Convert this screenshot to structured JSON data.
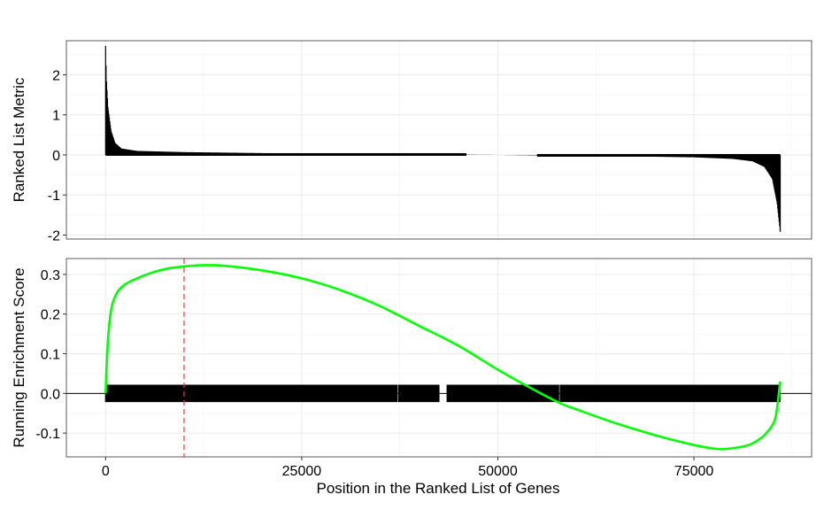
{
  "chart_data": [
    {
      "type": "bar",
      "title": "",
      "xlabel": "",
      "ylabel": "Ranked List Metric",
      "xlim": [
        -5000,
        90000
      ],
      "ylim": [
        -2.1,
        2.85
      ],
      "x_ticks": [
        0,
        25000,
        50000,
        75000
      ],
      "y_ticks": [
        2,
        1,
        0,
        -1,
        -2
      ],
      "y_tick_labels": [
        "2",
        "1",
        "0",
        "-1",
        "-2"
      ],
      "grid": true,
      "n_genes": 86000,
      "profile": [
        {
          "x": 0,
          "y": 2.72
        },
        {
          "x": 100,
          "y": 1.9
        },
        {
          "x": 300,
          "y": 1.2
        },
        {
          "x": 700,
          "y": 0.6
        },
        {
          "x": 1200,
          "y": 0.3
        },
        {
          "x": 2000,
          "y": 0.16
        },
        {
          "x": 4000,
          "y": 0.1
        },
        {
          "x": 10000,
          "y": 0.07
        },
        {
          "x": 20000,
          "y": 0.045
        },
        {
          "x": 30000,
          "y": 0.03
        },
        {
          "x": 40000,
          "y": 0.015
        },
        {
          "x": 46000,
          "y": 0.005
        },
        {
          "x": 50000,
          "y": 0.0
        },
        {
          "x": 55000,
          "y": -0.01
        },
        {
          "x": 65000,
          "y": -0.03
        },
        {
          "x": 75000,
          "y": -0.06
        },
        {
          "x": 80000,
          "y": -0.1
        },
        {
          "x": 82500,
          "y": -0.16
        },
        {
          "x": 84000,
          "y": -0.3
        },
        {
          "x": 85000,
          "y": -0.6
        },
        {
          "x": 85600,
          "y": -1.2
        },
        {
          "x": 86000,
          "y": -1.92
        }
      ],
      "colors": {
        "bars": "#000000",
        "grid": "#ebebeb",
        "border": "#333333"
      }
    },
    {
      "type": "line",
      "title": "",
      "xlabel": "Position in the Ranked List of Genes",
      "ylabel": "Running Enrichment Score",
      "xlim": [
        -5000,
        90000
      ],
      "ylim": [
        -0.16,
        0.34
      ],
      "x_ticks": [
        0,
        25000,
        50000,
        75000
      ],
      "x_tick_labels": [
        "0",
        "25000",
        "50000",
        "75000"
      ],
      "y_ticks": [
        0.3,
        0.2,
        0.1,
        0.0,
        -0.1
      ],
      "y_tick_labels": [
        "0.3",
        "0.2",
        "0.1",
        "0.0",
        "-0.1"
      ],
      "grid": true,
      "enrichment_peak_x": 10000,
      "series": [
        {
          "x": [
            0,
            150,
            400,
            800,
            1500,
            2500,
            4000,
            6000,
            8000,
            10000,
            12000,
            15000,
            20000,
            25000,
            30000,
            35000,
            40000,
            45000,
            50000,
            55000,
            58000,
            60000,
            65000,
            70000,
            75000,
            78000,
            80000,
            82000,
            83000,
            84000,
            85000,
            85500,
            86000
          ],
          "y": [
            0.0,
            0.08,
            0.16,
            0.22,
            0.255,
            0.275,
            0.29,
            0.305,
            0.315,
            0.32,
            0.323,
            0.322,
            0.31,
            0.29,
            0.26,
            0.22,
            0.17,
            0.12,
            0.06,
            0.005,
            -0.025,
            -0.04,
            -0.075,
            -0.105,
            -0.13,
            -0.14,
            -0.138,
            -0.13,
            -0.12,
            -0.105,
            -0.08,
            -0.05,
            0.03
          ],
          "color": "#00ff00"
        }
      ],
      "hit_band": {
        "ymin": -0.022,
        "ymax": 0.022,
        "color": "#000000"
      },
      "gaps": [
        [
          42500,
          43500
        ],
        [
          37200,
          37350
        ],
        [
          57800,
          57950
        ]
      ],
      "colors": {
        "peak_line": "#ff3333",
        "zero_line": "#000000",
        "grid": "#ebebeb",
        "border": "#333333"
      }
    }
  ]
}
